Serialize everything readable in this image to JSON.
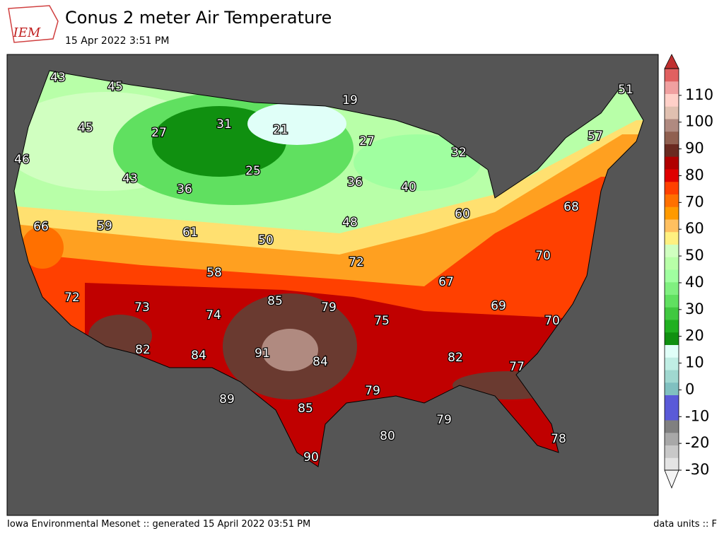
{
  "header": {
    "logo": "IEM",
    "title": "Conus 2 meter Air Temperature",
    "subtitle": "15 Apr 2022 3:51 PM"
  },
  "map": {
    "labels": [
      43,
      45,
      19,
      51,
      45,
      27,
      31,
      21,
      57,
      27,
      32,
      46,
      25,
      43,
      36,
      36,
      40,
      68,
      66,
      59,
      61,
      60,
      48,
      50,
      70,
      72,
      58,
      67,
      72,
      85,
      79,
      69,
      73,
      74,
      75,
      70,
      82,
      84,
      91,
      84,
      82,
      77,
      79,
      89,
      85,
      79,
      80,
      78,
      90
    ]
  },
  "colorbar": {
    "lim": [
      -30,
      120
    ],
    "ticks": [
      -30,
      -20,
      -10,
      0,
      10,
      20,
      30,
      40,
      50,
      60,
      70,
      80,
      90,
      100,
      110
    ],
    "colors": [
      "#e4e4e4",
      "#c8c8c8",
      "#a8a8a8",
      "#808080",
      "#5a5ad8",
      "#5a5ad8",
      "#80c0c0",
      "#a0d8d0",
      "#c0eee4",
      "#e0fff8",
      "#109010",
      "#20b020",
      "#40c840",
      "#60e060",
      "#80f080",
      "#a0ffa0",
      "#b8ffa8",
      "#d0ffc0",
      "#fff080",
      "#ffc060",
      "#ff9a00",
      "#ff7000",
      "#ff4000",
      "#e00000",
      "#b00000",
      "#6a2a20",
      "#906050",
      "#b08a80",
      "#e0c0b0",
      "#ffd0c8",
      "#f0a0a0",
      "#e06060"
    ],
    "over": "#c03030",
    "under": "#f4f4f4"
  },
  "footer": {
    "left": "Iowa Environmental Mesonet :: generated 15 April 2022 03:51 PM",
    "right": "data units :: F"
  }
}
